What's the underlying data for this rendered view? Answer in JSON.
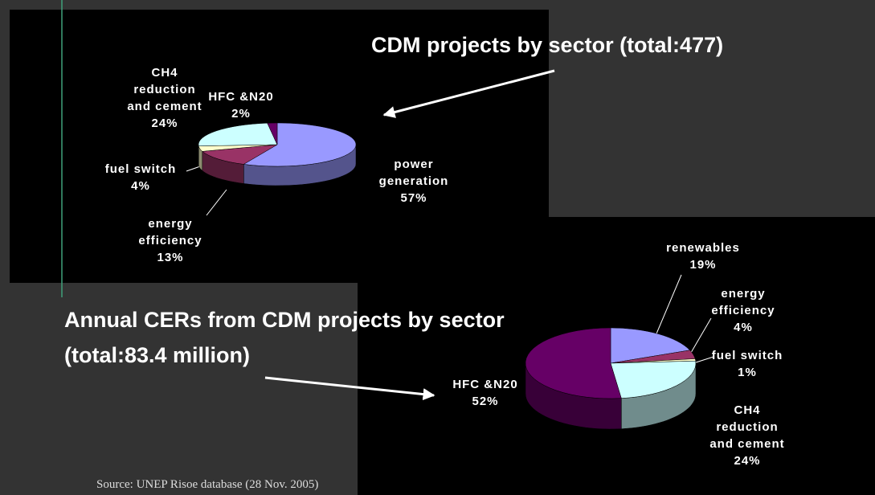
{
  "chart_data": [
    {
      "type": "pie3d",
      "title": "CDM projects by sector (total:477)",
      "categories": [
        "power generation",
        "energy efficiency",
        "fuel switch",
        "CH4 reduction and cement",
        "HFC &N20"
      ],
      "values": [
        57,
        13,
        4,
        24,
        2
      ],
      "value_labels": [
        "57%",
        "13%",
        "4%",
        "24%",
        "2%"
      ],
      "colors": [
        "#9999ff",
        "#993366",
        "#ffffcc",
        "#ccffff",
        "#660066"
      ]
    },
    {
      "type": "pie3d",
      "title": "Annual CERs from CDM projects by sector (total:83.4 million)",
      "categories": [
        "renewables",
        "energy efficiency",
        "fuel switch",
        "CH4 reduction and cement",
        "HFC &N20"
      ],
      "values": [
        19,
        4,
        1,
        24,
        52
      ],
      "value_labels": [
        "19%",
        "4%",
        "1%",
        "24%",
        "52%"
      ],
      "colors": [
        "#9999ff",
        "#993366",
        "#ffffcc",
        "#ccffff",
        "#660066"
      ]
    }
  ],
  "source": "Source: UNEP Risoe database (28 Nov. 2005)"
}
